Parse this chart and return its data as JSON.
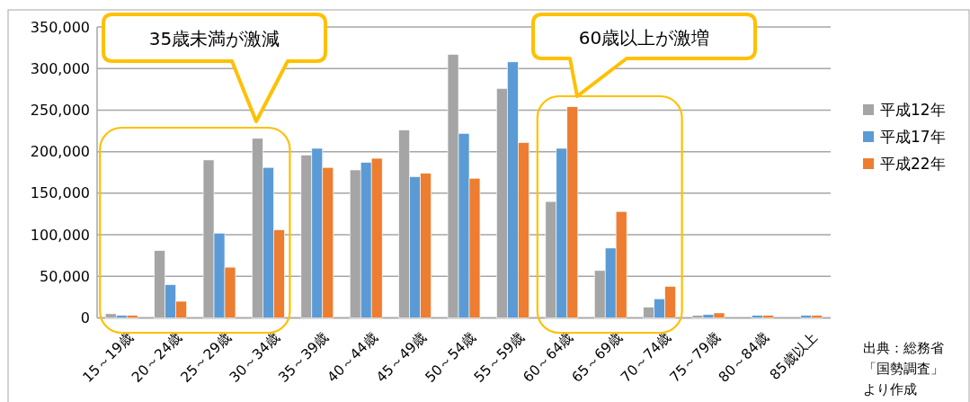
{
  "chart_data": {
    "type": "bar",
    "categories": [
      "15～19歳",
      "20～24歳",
      "25～29歳",
      "30～34歳",
      "35～39歳",
      "40～44歳",
      "45～49歳",
      "50～54歳",
      "55～59歳",
      "60～64歳",
      "65～69歳",
      "70～74歳",
      "75～79歳",
      "80～84歳",
      "85歳以上"
    ],
    "series": [
      {
        "name": "平成12年",
        "color": "#a5a5a5",
        "values": [
          5000,
          81000,
          190000,
          216000,
          196000,
          178000,
          226000,
          317000,
          276000,
          140000,
          57000,
          13000,
          3000,
          0,
          0
        ]
      },
      {
        "name": "平成17年",
        "color": "#5b9bd5",
        "values": [
          3000,
          40000,
          102000,
          181000,
          204000,
          187000,
          170000,
          222000,
          308000,
          204000,
          84000,
          23000,
          4000,
          3000,
          3000
        ]
      },
      {
        "name": "平成22年",
        "color": "#ed7d31",
        "values": [
          3000,
          20000,
          61000,
          106000,
          181000,
          192000,
          174000,
          168000,
          211000,
          254000,
          128000,
          38000,
          6000,
          3000,
          3000
        ]
      }
    ],
    "ylim": [
      0,
      350000
    ],
    "yticks": [
      {
        "value": 0,
        "label": "0"
      },
      {
        "value": 50000,
        "label": "50,000"
      },
      {
        "value": 100000,
        "label": "100,000"
      },
      {
        "value": 150000,
        "label": "150,000"
      },
      {
        "value": 200000,
        "label": "200,000"
      },
      {
        "value": 250000,
        "label": "250,000"
      },
      {
        "value": 300000,
        "label": "300,000"
      },
      {
        "value": 350000,
        "label": "350,000"
      }
    ],
    "grid": "y",
    "legend": "right",
    "annotations": [
      "35歳未満が激減",
      "60歳以上が激増",
      "出典：総務省",
      "「国勢調査」",
      "より作成"
    ]
  }
}
